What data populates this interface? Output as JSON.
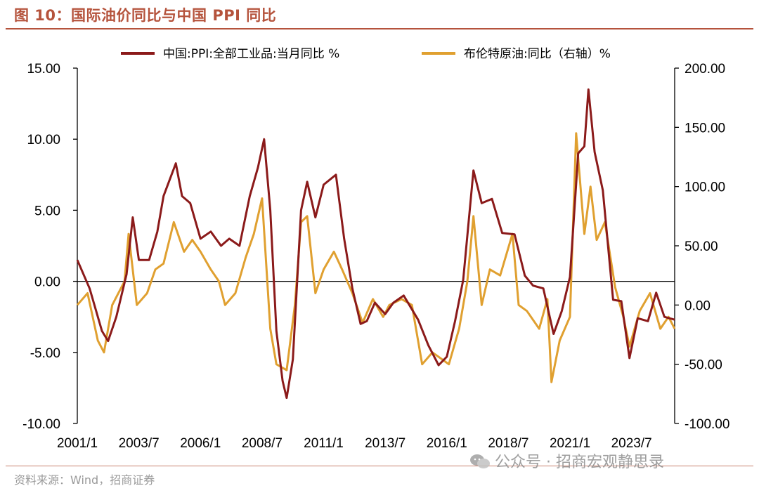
{
  "header": {
    "title": "图 10：国际油价同比与中国 PPI 同比"
  },
  "footer": {
    "source": "资料来源：Wind，招商证券",
    "watermark": "公众号 · 招商宏观静思录"
  },
  "colors": {
    "title": "#b5533c",
    "ppi": "#8b1a1a",
    "brent": "#e0a030",
    "axis": "#000000"
  },
  "chart_data": {
    "type": "line",
    "x_ticks": [
      "2001/1",
      "2003/7",
      "2006/1",
      "2008/7",
      "2011/1",
      "2013/7",
      "2016/1",
      "2018/7",
      "2021/1",
      "2023/7"
    ],
    "y_left": {
      "ticks": [
        "15.00",
        "10.00",
        "5.00",
        "0.00",
        "-5.00",
        "-10.00"
      ],
      "range": [
        -10,
        15
      ]
    },
    "y_right": {
      "ticks": [
        "200.00",
        "150.00",
        "100.00",
        "50.00",
        "0.00",
        "-50.00",
        "-100.00"
      ],
      "range": [
        -100,
        200
      ]
    },
    "series": [
      {
        "name": "中国:PPI:全部工业品:当月同比 %",
        "axis": "left",
        "points": [
          [
            "2001/1",
            1.5
          ],
          [
            "2001/7",
            -0.5
          ],
          [
            "2002/1",
            -3.5
          ],
          [
            "2002/4",
            -4.2
          ],
          [
            "2002/8",
            -2.5
          ],
          [
            "2003/1",
            0.5
          ],
          [
            "2003/4",
            4.5
          ],
          [
            "2003/7",
            1.5
          ],
          [
            "2003/12",
            1.5
          ],
          [
            "2004/4",
            3.5
          ],
          [
            "2004/7",
            6.0
          ],
          [
            "2005/1",
            8.3
          ],
          [
            "2005/4",
            6.0
          ],
          [
            "2005/8",
            5.5
          ],
          [
            "2006/1",
            3.0
          ],
          [
            "2006/6",
            3.5
          ],
          [
            "2006/11",
            2.5
          ],
          [
            "2007/3",
            3.0
          ],
          [
            "2007/8",
            2.5
          ],
          [
            "2008/1",
            6.0
          ],
          [
            "2008/5",
            8.0
          ],
          [
            "2008/8",
            10.0
          ],
          [
            "2008/11",
            5.0
          ],
          [
            "2009/2",
            -3.5
          ],
          [
            "2009/5",
            -7.0
          ],
          [
            "2009/7",
            -8.2
          ],
          [
            "2009/10",
            -5.5
          ],
          [
            "2010/2",
            5.0
          ],
          [
            "2010/5",
            7.0
          ],
          [
            "2010/9",
            4.5
          ],
          [
            "2011/1",
            6.8
          ],
          [
            "2011/7",
            7.5
          ],
          [
            "2011/11",
            3.0
          ],
          [
            "2012/3",
            -0.5
          ],
          [
            "2012/7",
            -3.0
          ],
          [
            "2012/10",
            -2.8
          ],
          [
            "2013/2",
            -1.5
          ],
          [
            "2013/7",
            -2.3
          ],
          [
            "2013/11",
            -1.5
          ],
          [
            "2014/4",
            -1.0
          ],
          [
            "2014/11",
            -2.7
          ],
          [
            "2015/4",
            -4.5
          ],
          [
            "2015/9",
            -5.9
          ],
          [
            "2016/1",
            -5.3
          ],
          [
            "2016/5",
            -2.8
          ],
          [
            "2016/9",
            0.1
          ],
          [
            "2017/2",
            7.8
          ],
          [
            "2017/6",
            5.5
          ],
          [
            "2017/11",
            5.8
          ],
          [
            "2018/4",
            3.4
          ],
          [
            "2018/10",
            3.3
          ],
          [
            "2019/3",
            0.4
          ],
          [
            "2019/7",
            -0.3
          ],
          [
            "2019/12",
            -0.5
          ],
          [
            "2020/5",
            -3.7
          ],
          [
            "2020/9",
            -2.1
          ],
          [
            "2021/1",
            0.3
          ],
          [
            "2021/5",
            9.0
          ],
          [
            "2021/8",
            9.5
          ],
          [
            "2021/10",
            13.5
          ],
          [
            "2022/1",
            9.1
          ],
          [
            "2022/5",
            6.4
          ],
          [
            "2022/10",
            -1.3
          ],
          [
            "2023/2",
            -1.4
          ],
          [
            "2023/6",
            -5.4
          ],
          [
            "2023/10",
            -2.6
          ],
          [
            "2024/3",
            -2.8
          ],
          [
            "2024/7",
            -0.8
          ],
          [
            "2024/11",
            -2.5
          ],
          [
            "2025/4",
            -2.7
          ]
        ]
      },
      {
        "name": "布伦特原油:同比（右轴）%",
        "axis": "right",
        "points": [
          [
            "2001/1",
            0.0
          ],
          [
            "2001/6",
            10.0
          ],
          [
            "2001/11",
            -30.0
          ],
          [
            "2002/2",
            -40.0
          ],
          [
            "2002/6",
            0.0
          ],
          [
            "2002/12",
            20.0
          ],
          [
            "2003/2",
            60.0
          ],
          [
            "2003/6",
            0.0
          ],
          [
            "2003/11",
            10.0
          ],
          [
            "2004/3",
            30.0
          ],
          [
            "2004/7",
            35.0
          ],
          [
            "2004/12",
            70.0
          ],
          [
            "2005/5",
            45.0
          ],
          [
            "2005/9",
            55.0
          ],
          [
            "2006/1",
            45.0
          ],
          [
            "2006/6",
            30.0
          ],
          [
            "2006/10",
            20.0
          ],
          [
            "2007/1",
            0.0
          ],
          [
            "2007/6",
            10.0
          ],
          [
            "2007/11",
            40.0
          ],
          [
            "2008/3",
            60.0
          ],
          [
            "2008/7",
            90.0
          ],
          [
            "2008/11",
            -20.0
          ],
          [
            "2009/2",
            -50.0
          ],
          [
            "2009/7",
            -55.0
          ],
          [
            "2009/11",
            0.0
          ],
          [
            "2010/2",
            70.0
          ],
          [
            "2010/5",
            75.0
          ],
          [
            "2010/9",
            10.0
          ],
          [
            "2011/1",
            30.0
          ],
          [
            "2011/6",
            45.0
          ],
          [
            "2011/10",
            30.0
          ],
          [
            "2012/3",
            10.0
          ],
          [
            "2012/8",
            -15.0
          ],
          [
            "2013/1",
            5.0
          ],
          [
            "2013/6",
            -10.0
          ],
          [
            "2013/9",
            0.0
          ],
          [
            "2014/3",
            5.0
          ],
          [
            "2014/8",
            0.0
          ],
          [
            "2015/1",
            -50.0
          ],
          [
            "2015/6",
            -40.0
          ],
          [
            "2015/10",
            -45.0
          ],
          [
            "2016/2",
            -50.0
          ],
          [
            "2016/7",
            -20.0
          ],
          [
            "2016/11",
            20.0
          ],
          [
            "2017/2",
            75.0
          ],
          [
            "2017/6",
            0.0
          ],
          [
            "2017/10",
            30.0
          ],
          [
            "2018/3",
            25.0
          ],
          [
            "2018/9",
            60.0
          ],
          [
            "2018/12",
            0.0
          ],
          [
            "2019/4",
            -5.0
          ],
          [
            "2019/10",
            -20.0
          ],
          [
            "2020/2",
            5.0
          ],
          [
            "2020/4",
            -65.0
          ],
          [
            "2020/8",
            -30.0
          ],
          [
            "2021/1",
            -10.0
          ],
          [
            "2021/4",
            145.0
          ],
          [
            "2021/8",
            60.0
          ],
          [
            "2021/11",
            100.0
          ],
          [
            "2022/2",
            55.0
          ],
          [
            "2022/6",
            70.0
          ],
          [
            "2022/11",
            15.0
          ],
          [
            "2023/3",
            -10.0
          ],
          [
            "2023/6",
            -35.0
          ],
          [
            "2023/11",
            -5.0
          ],
          [
            "2024/4",
            10.0
          ],
          [
            "2024/9",
            -20.0
          ],
          [
            "2025/1",
            -10.0
          ],
          [
            "2025/4",
            -20.0
          ]
        ]
      }
    ],
    "legend": "top",
    "grid": false
  }
}
